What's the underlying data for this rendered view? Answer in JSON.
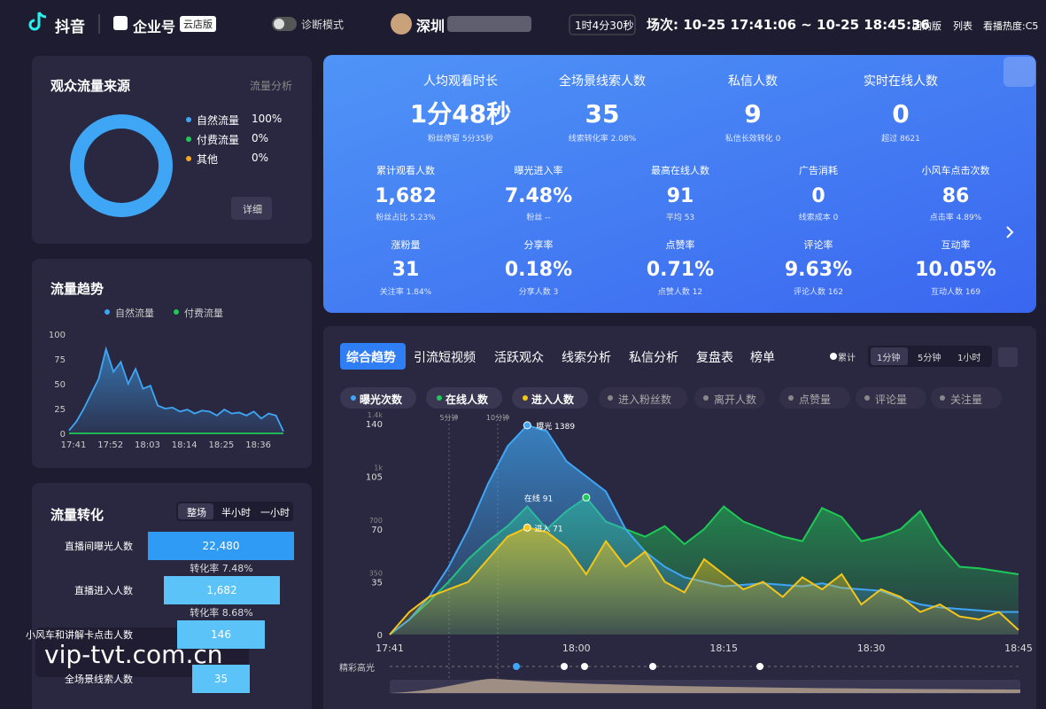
{
  "header": {
    "logo": "抖音",
    "brand": "企业号",
    "badge": "云店版",
    "mode": "诊断模式",
    "account": "深圳",
    "duration": "1时4分30秒",
    "session": "场次: 10-25 17:41:06 ~ 10-25 18:45:36",
    "links": [
      "团购版",
      "列表",
      "看播热度:C5"
    ]
  },
  "source": {
    "title": "观众流量来源",
    "link": "流量分析",
    "button": "详细",
    "chart_data": {
      "type": "pie",
      "categories": [
        "自然流量",
        "付费流量",
        "其他"
      ],
      "values": [
        100,
        0,
        0
      ],
      "value_labels": [
        "100%",
        "0%",
        "0%"
      ],
      "colors": [
        "#3ea6f5",
        "#1ec955",
        "#f5a623"
      ]
    }
  },
  "trend": {
    "title": "流量趋势",
    "chart_data": {
      "type": "line",
      "series": [
        {
          "name": "自然流量",
          "color": "#3ea6f5",
          "values": [
            3,
            12,
            25,
            40,
            55,
            85,
            62,
            72,
            50,
            65,
            45,
            48,
            28,
            25,
            26,
            22,
            24,
            20,
            23,
            22,
            18,
            24,
            20,
            21,
            18,
            22,
            15,
            20,
            18,
            2
          ]
        },
        {
          "name": "付费流量",
          "color": "#1ec955",
          "values": [
            0,
            0,
            0,
            0,
            0,
            0,
            0,
            0,
            0,
            0,
            0,
            0,
            0,
            0,
            0,
            0,
            0,
            0,
            0,
            0,
            0,
            0,
            0,
            0,
            0,
            0,
            0,
            0,
            0,
            0
          ]
        }
      ],
      "ylim": [
        0,
        100
      ],
      "yticks": [
        0,
        25,
        50,
        75,
        100
      ],
      "xlim": [
        0,
        29
      ],
      "xticks": [
        {
          "value": 0,
          "label": "17:41"
        },
        {
          "value": 5,
          "label": "17:52"
        },
        {
          "value": 10,
          "label": "18:03"
        },
        {
          "value": 15,
          "label": "18:14"
        },
        {
          "value": 20,
          "label": "18:25"
        },
        {
          "value": 25,
          "label": "18:36"
        }
      ]
    }
  },
  "funnel": {
    "title": "流量转化",
    "tabs": [
      "整场",
      "半小时",
      "一小时"
    ],
    "chart_data": {
      "type": "funnel",
      "categories": [
        "直播间曝光人数",
        "直播进入人数",
        "小风车和讲解卡点击人数",
        "全场景线索人数"
      ],
      "values": [
        22480,
        1682,
        146,
        35
      ],
      "value_labels": [
        "22,480",
        "1,682",
        "146",
        "35"
      ],
      "rates": [
        "转化率 7.48%",
        "转化率 8.68%"
      ]
    }
  },
  "watermark": "vip-tvt.com.cn",
  "metrics": {
    "rows": [
      [
        {
          "label": "人均观看时长",
          "value": "1分48秒",
          "sub": "粉丝停留 5分35秒"
        },
        {
          "label": "全场景线索人数",
          "value": "35",
          "sub": "线索转化率 2.08%"
        },
        {
          "label": "私信人数",
          "value": "9",
          "sub": "私信长效转化 0"
        },
        {
          "label": "实时在线人数",
          "value": "0",
          "sub": "超过 8621"
        }
      ],
      [
        {
          "label": "累计观看人数",
          "value": "1,682",
          "sub": "粉丝占比 5.23%"
        },
        {
          "label": "曝光进入率",
          "value": "7.48%",
          "sub": "粉丝 --"
        },
        {
          "label": "最高在线人数",
          "value": "91",
          "sub": "平均 53"
        },
        {
          "label": "广告消耗",
          "value": "0",
          "sub": "线索成本 0"
        },
        {
          "label": "小风车点击次数",
          "value": "86",
          "sub": "点击率 4.89%"
        }
      ],
      [
        {
          "label": "涨粉量",
          "value": "31",
          "sub": "关注率 1.84%"
        },
        {
          "label": "分享率",
          "value": "0.18%",
          "sub": "分享人数 3"
        },
        {
          "label": "点赞率",
          "value": "0.71%",
          "sub": "点赞人数 12"
        },
        {
          "label": "评论率",
          "value": "9.63%",
          "sub": "评论人数 162"
        },
        {
          "label": "互动率",
          "value": "10.05%",
          "sub": "互动人数 169"
        }
      ]
    ]
  },
  "analysis": {
    "tabs": [
      "综合趋势",
      "引流短视频",
      "活跃观众",
      "线索分析",
      "私信分析",
      "复盘表",
      "榜单"
    ],
    "options": [
      "累计",
      "1分钟",
      "5分钟",
      "1小时"
    ],
    "inactive_series": [
      "进入粉丝数",
      "离开人数",
      "点赞量",
      "评论量",
      "关注量"
    ],
    "highlight_label": "精彩高光",
    "chart_data": {
      "type": "area",
      "series": [
        {
          "name": "曝光次数",
          "color": "#3ea6f5",
          "axis": "y2",
          "values": [
            0,
            100,
            250,
            450,
            700,
            1000,
            1250,
            1389,
            1350,
            1150,
            1050,
            950,
            700,
            550,
            450,
            380,
            350,
            320,
            330,
            340,
            330,
            320,
            340,
            310,
            300,
            290,
            240,
            200,
            180,
            170,
            160,
            150,
            150
          ]
        },
        {
          "name": "在线人数",
          "color": "#1ec955",
          "values": [
            0,
            10,
            22,
            35,
            50,
            62,
            72,
            85,
            70,
            82,
            91,
            75,
            70,
            65,
            72,
            60,
            70,
            85,
            75,
            70,
            65,
            62,
            84,
            78,
            62,
            65,
            70,
            82,
            60,
            45,
            44,
            42,
            40
          ]
        },
        {
          "name": "进入人数",
          "color": "#f5c518",
          "values": [
            0,
            15,
            25,
            30,
            35,
            50,
            65,
            71,
            68,
            58,
            40,
            62,
            45,
            55,
            35,
            28,
            50,
            40,
            30,
            35,
            25,
            38,
            30,
            40,
            20,
            30,
            25,
            15,
            20,
            12,
            10,
            15,
            3
          ]
        }
      ],
      "ylim": [
        0,
        140
      ],
      "yticks": [
        0,
        35,
        70,
        105,
        140
      ],
      "y2lim": [
        0,
        1400
      ],
      "y2ticks": [
        350,
        700,
        {
          "value": 1050,
          "label": "1k"
        },
        {
          "value": 1400,
          "label": "1.4k"
        }
      ],
      "xlim": [
        0,
        32
      ],
      "xticks": [
        {
          "value": 0,
          "label": "17:41"
        },
        {
          "value": 9.5,
          "label": "18:00"
        },
        {
          "value": 17,
          "label": "18:15"
        },
        {
          "value": 24.5,
          "label": "18:30"
        },
        {
          "value": 32,
          "label": "18:45"
        }
      ],
      "annotations": [
        "5分钟",
        "10分钟",
        "曝光 1389",
        "在线 91",
        "进入 71"
      ]
    }
  }
}
